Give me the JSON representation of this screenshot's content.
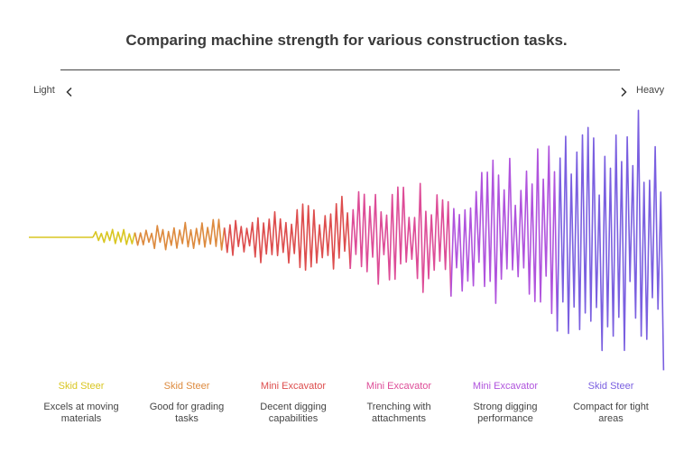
{
  "title": "Comparing machine strength for various construction tasks.",
  "scale": {
    "left_label": "Light",
    "right_label": "Heavy",
    "left_icon": "chevron-left-icon",
    "right_icon": "chevron-right-icon"
  },
  "segments": [
    {
      "name": "Skid Steer",
      "description_line1": "Excels at moving",
      "description_line2": "materials",
      "color": "#d9c622"
    },
    {
      "name": "Skid Steer",
      "description_line1": "Good for grading",
      "description_line2": "tasks",
      "color": "#dd8a3e"
    },
    {
      "name": "Mini Excavator",
      "description_line1": "Decent digging",
      "description_line2": "capabilities",
      "color": "#dd4d4d"
    },
    {
      "name": "Mini Excavator",
      "description_line1": "Trenching with",
      "description_line2": "attachments",
      "color": "#dd4c97"
    },
    {
      "name": "Mini Excavator",
      "description_line1": "Strong digging",
      "description_line2": "performance",
      "color": "#b053dd"
    },
    {
      "name": "Skid Steer",
      "description_line1": "Compact for tight",
      "description_line2": "areas",
      "color": "#7a5fe0"
    }
  ]
}
